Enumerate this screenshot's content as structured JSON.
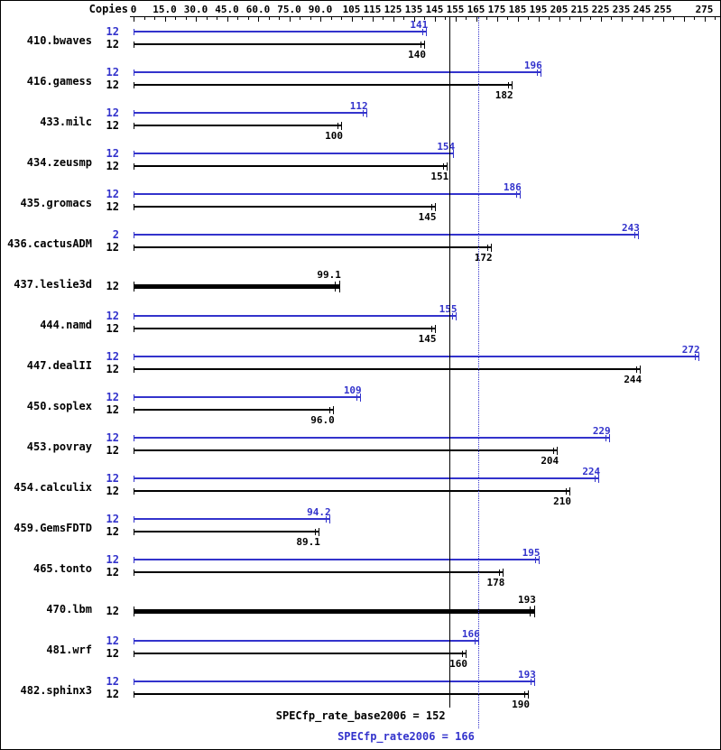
{
  "chart_data": {
    "type": "bar",
    "orientation": "horizontal",
    "copies_label": "Copies",
    "x_axis": {
      "tick_labels": [
        "0",
        "15.0",
        "30.0",
        "45.0",
        "60.0",
        "75.0",
        "90.0",
        "105",
        "115",
        "125",
        "135",
        "145",
        "155",
        "165",
        "175",
        "185",
        "195",
        "205",
        "215",
        "225",
        "235",
        "245",
        "255",
        "275"
      ],
      "tick_values": [
        0,
        15,
        30,
        45,
        60,
        75,
        90,
        105,
        115,
        125,
        135,
        145,
        155,
        165,
        175,
        185,
        195,
        205,
        215,
        225,
        235,
        245,
        255,
        275
      ],
      "minor_step": 5,
      "range": [
        0,
        282
      ]
    },
    "series_colors": {
      "peak": "#3333cc",
      "base": "#000000"
    },
    "benchmarks": [
      {
        "name": "410.bwaves",
        "peak_copies": "12",
        "peak": 141,
        "peak_label": "141",
        "base_copies": "12",
        "base": 140,
        "base_label": "140"
      },
      {
        "name": "416.gamess",
        "peak_copies": "12",
        "peak": 196,
        "peak_label": "196",
        "base_copies": "12",
        "base": 182,
        "base_label": "182"
      },
      {
        "name": "433.milc",
        "peak_copies": "12",
        "peak": 112,
        "peak_label": "112",
        "base_copies": "12",
        "base": 100,
        "base_label": "100"
      },
      {
        "name": "434.zeusmp",
        "peak_copies": "12",
        "peak": 154,
        "peak_label": "154",
        "base_copies": "12",
        "base": 151,
        "base_label": "151"
      },
      {
        "name": "435.gromacs",
        "peak_copies": "12",
        "peak": 186,
        "peak_label": "186",
        "base_copies": "12",
        "base": 145,
        "base_label": "145"
      },
      {
        "name": "436.cactusADM",
        "peak_copies": "2",
        "peak": 243,
        "peak_label": "243",
        "base_copies": "12",
        "base": 172,
        "base_label": "172"
      },
      {
        "name": "437.leslie3d",
        "single": true,
        "base_copies": "12",
        "base": 99.1,
        "base_label": "99.1"
      },
      {
        "name": "444.namd",
        "peak_copies": "12",
        "peak": 155,
        "peak_label": "155",
        "base_copies": "12",
        "base": 145,
        "base_label": "145"
      },
      {
        "name": "447.dealII",
        "peak_copies": "12",
        "peak": 272,
        "peak_label": "272",
        "base_copies": "12",
        "base": 244,
        "base_label": "244"
      },
      {
        "name": "450.soplex",
        "peak_copies": "12",
        "peak": 109,
        "peak_label": "109",
        "base_copies": "12",
        "base": 96,
        "base_label": "96.0"
      },
      {
        "name": "453.povray",
        "peak_copies": "12",
        "peak": 229,
        "peak_label": "229",
        "base_copies": "12",
        "base": 204,
        "base_label": "204"
      },
      {
        "name": "454.calculix",
        "peak_copies": "12",
        "peak": 224,
        "peak_label": "224",
        "base_copies": "12",
        "base": 210,
        "base_label": "210"
      },
      {
        "name": "459.GemsFDTD",
        "peak_copies": "12",
        "peak": 94.2,
        "peak_label": "94.2",
        "base_copies": "12",
        "base": 89.1,
        "base_label": "89.1"
      },
      {
        "name": "465.tonto",
        "peak_copies": "12",
        "peak": 195,
        "peak_label": "195",
        "base_copies": "12",
        "base": 178,
        "base_label": "178"
      },
      {
        "name": "470.lbm",
        "single": true,
        "base_copies": "12",
        "base": 193,
        "base_label": "193"
      },
      {
        "name": "481.wrf",
        "peak_copies": "12",
        "peak": 166,
        "peak_label": "166",
        "base_copies": "12",
        "base": 160,
        "base_label": "160"
      },
      {
        "name": "482.sphinx3",
        "peak_copies": "12",
        "peak": 193,
        "peak_label": "193",
        "base_copies": "12",
        "base": 190,
        "base_label": "190"
      }
    ],
    "reference_lines": [
      {
        "id": "base",
        "value": 152,
        "label": "SPECfp_rate_base2006 = 152",
        "style": "solid",
        "color": "#000000"
      },
      {
        "id": "peak",
        "value": 166,
        "label": "SPECfp_rate2006 = 166",
        "style": "dotted",
        "color": "#3333cc"
      }
    ]
  }
}
